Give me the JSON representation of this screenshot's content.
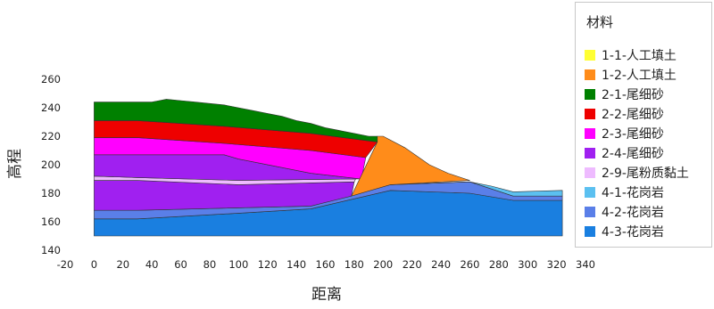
{
  "chart_data": {
    "type": "area",
    "xlabel": "距离",
    "ylabel": "高程",
    "xlim": [
      -20,
      340
    ],
    "ylim": [
      140,
      260
    ],
    "x_ticks": [
      -20,
      0,
      20,
      40,
      60,
      80,
      100,
      120,
      140,
      160,
      180,
      200,
      220,
      240,
      260,
      280,
      300,
      320,
      340
    ],
    "y_ticks": [
      140,
      160,
      180,
      200,
      220,
      240,
      260
    ],
    "grid": false,
    "legend": {
      "title": "材料",
      "position": "right",
      "items": [
        {
          "label": "1-1-人工填土",
          "color": "#ffff33"
        },
        {
          "label": "1-2-人工填土",
          "color": "#ff8c1a"
        },
        {
          "label": "2-1-尾细砂",
          "color": "#008000"
        },
        {
          "label": "2-2-尾细砂",
          "color": "#ee0000"
        },
        {
          "label": "2-3-尾细砂",
          "color": "#ff00ff"
        },
        {
          "label": "2-4-尾细砂",
          "color": "#a020f0"
        },
        {
          "label": "2-9-尾粉质黏土",
          "color": "#eebbff"
        },
        {
          "label": "4-1-花岗岩",
          "color": "#5bc0f0"
        },
        {
          "label": "4-2-花岗岩",
          "color": "#5a7fe8"
        },
        {
          "label": "4-3-花岗岩",
          "color": "#1a7fe0"
        }
      ]
    },
    "regions": [
      {
        "name": "4-3-花岗岩",
        "color": "#1a7fe0",
        "points": [
          [
            0,
            150
          ],
          [
            0,
            162
          ],
          [
            30,
            162
          ],
          [
            100,
            166
          ],
          [
            150,
            169
          ],
          [
            205,
            182
          ],
          [
            260,
            180
          ],
          [
            290,
            175
          ],
          [
            324,
            175
          ],
          [
            324,
            150
          ]
        ]
      },
      {
        "name": "4-2-花岗岩",
        "color": "#5a7fe8",
        "points": [
          [
            0,
            162
          ],
          [
            0,
            168
          ],
          [
            30,
            168
          ],
          [
            150,
            171
          ],
          [
            205,
            186
          ],
          [
            260,
            188
          ],
          [
            290,
            178
          ],
          [
            324,
            178
          ],
          [
            324,
            175
          ],
          [
            290,
            175
          ],
          [
            260,
            180
          ],
          [
            205,
            182
          ],
          [
            150,
            169
          ],
          [
            100,
            166
          ],
          [
            30,
            162
          ]
        ]
      },
      {
        "name": "4-1-花岗岩",
        "color": "#5bc0f0",
        "points": [
          [
            205,
            186
          ],
          [
            260,
            188
          ],
          [
            275,
            185
          ],
          [
            290,
            181
          ],
          [
            324,
            182
          ],
          [
            324,
            178
          ],
          [
            290,
            178
          ],
          [
            260,
            188
          ],
          [
            205,
            186
          ]
        ]
      },
      {
        "name": "2-4-尾细砂",
        "color": "#a020f0",
        "points": [
          [
            0,
            168
          ],
          [
            0,
            189
          ],
          [
            30,
            189
          ],
          [
            100,
            186
          ],
          [
            180,
            188
          ],
          [
            178,
            178
          ],
          [
            150,
            171
          ],
          [
            30,
            168
          ]
        ]
      },
      {
        "name": "2-9-尾粉质黏土",
        "color": "#eebbff",
        "points": [
          [
            0,
            189
          ],
          [
            0,
            192
          ],
          [
            30,
            191
          ],
          [
            100,
            189
          ],
          [
            181,
            190
          ],
          [
            180,
            188
          ],
          [
            100,
            186
          ],
          [
            30,
            189
          ]
        ]
      },
      {
        "name": "2-4-尾细砂",
        "color": "#a020f0",
        "points": [
          [
            0,
            192
          ],
          [
            0,
            207
          ],
          [
            30,
            207
          ],
          [
            90,
            207
          ],
          [
            100,
            204
          ],
          [
            150,
            194
          ],
          [
            185,
            190
          ],
          [
            181,
            190
          ],
          [
            100,
            189
          ],
          [
            30,
            191
          ]
        ]
      },
      {
        "name": "2-3-尾细砂",
        "color": "#ff00ff",
        "points": [
          [
            0,
            207
          ],
          [
            0,
            219
          ],
          [
            30,
            219
          ],
          [
            90,
            215
          ],
          [
            150,
            210
          ],
          [
            188,
            205
          ],
          [
            185,
            190
          ],
          [
            150,
            194
          ],
          [
            100,
            204
          ],
          [
            90,
            207
          ],
          [
            30,
            207
          ]
        ]
      },
      {
        "name": "2-2-尾细砂",
        "color": "#ee0000",
        "points": [
          [
            0,
            219
          ],
          [
            0,
            231
          ],
          [
            30,
            231
          ],
          [
            90,
            227
          ],
          [
            150,
            222
          ],
          [
            196,
            216
          ],
          [
            188,
            205
          ],
          [
            150,
            210
          ],
          [
            90,
            215
          ],
          [
            30,
            219
          ]
        ]
      },
      {
        "name": "2-1-尾细砂",
        "color": "#008000",
        "points": [
          [
            0,
            231
          ],
          [
            0,
            244
          ],
          [
            30,
            244
          ],
          [
            40,
            244
          ],
          [
            45,
            245
          ],
          [
            50,
            246
          ],
          [
            60,
            245
          ],
          [
            70,
            244
          ],
          [
            80,
            243
          ],
          [
            90,
            242
          ],
          [
            100,
            240
          ],
          [
            110,
            238
          ],
          [
            120,
            236
          ],
          [
            130,
            234
          ],
          [
            140,
            231
          ],
          [
            150,
            229
          ],
          [
            160,
            226
          ],
          [
            170,
            224
          ],
          [
            180,
            222
          ],
          [
            190,
            220
          ],
          [
            196,
            220
          ],
          [
            196,
            216
          ],
          [
            150,
            222
          ],
          [
            90,
            227
          ],
          [
            30,
            231
          ]
        ]
      },
      {
        "name": "1-2-人工填土",
        "color": "#ff8c1a",
        "points": [
          [
            178,
            178
          ],
          [
            196,
            216
          ],
          [
            196,
            220
          ],
          [
            200,
            220
          ],
          [
            215,
            212
          ],
          [
            232,
            200
          ],
          [
            245,
            194
          ],
          [
            260,
            189
          ],
          [
            205,
            186
          ]
        ]
      }
    ]
  }
}
